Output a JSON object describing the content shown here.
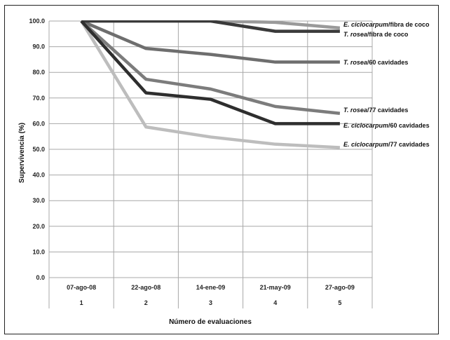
{
  "chart_data": {
    "type": "line",
    "xlabel": "Número de evaluaciones",
    "ylabel": "Supervivencia (%)",
    "ylim": [
      0,
      100
    ],
    "yticks": [
      "0.0",
      "10.0",
      "20.0",
      "30.0",
      "40.0",
      "50.0",
      "60.0",
      "70.0",
      "80.0",
      "90.0",
      "100.0"
    ],
    "categories": [
      "07-ago-08",
      "22-ago-08",
      "14-ene-09",
      "21-may-09",
      "27-ago-09"
    ],
    "category_numbers": [
      "1",
      "2",
      "3",
      "4",
      "5"
    ],
    "grid": true,
    "series": [
      {
        "label_species": "E. ciclocarpum",
        "label_rest": "/fibra de coco",
        "color": "#9a9a9a",
        "values": [
          100,
          100,
          100,
          99.5,
          97.3
        ]
      },
      {
        "label_species": "T. rosea",
        "label_rest": "/fibra de coco",
        "color": "#3a3a3a",
        "values": [
          100,
          100,
          100,
          96,
          96
        ]
      },
      {
        "label_species": "T. rosea",
        "label_rest": "/60 cavidades",
        "color": "#6e6e6e",
        "values": [
          100,
          89.3,
          87,
          84,
          84
        ]
      },
      {
        "label_species": "T. rosea",
        "label_rest": "/77 cavidades",
        "color": "#7c7c7c",
        "values": [
          100,
          77.3,
          73.5,
          66.7,
          64
        ]
      },
      {
        "label_species": "E. ciclocarpum",
        "label_rest": "/60 cavidades",
        "color": "#2e2e2e",
        "values": [
          100,
          72,
          69.5,
          60,
          60
        ]
      },
      {
        "label_species": "E. ciclocarpum",
        "label_rest": "/77 cavidades",
        "color": "#bdbdbd",
        "values": [
          100,
          58.7,
          54.8,
          52,
          50.7
        ]
      }
    ]
  }
}
